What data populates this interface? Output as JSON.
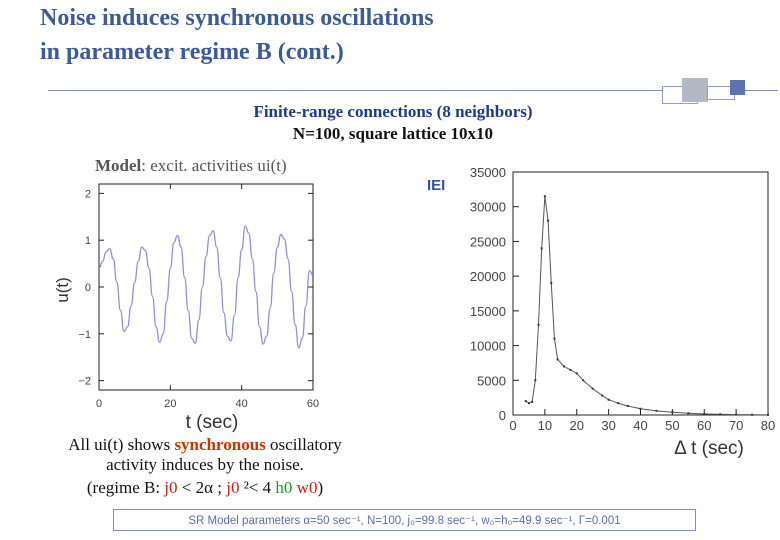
{
  "title": {
    "line1": "Noise induces synchronous oscillations",
    "line2": "in parameter regime B (cont.)"
  },
  "subtitle": {
    "line1": "Finite-range connections (8 neighbors)",
    "line2": "N=100, square lattice 10x10"
  },
  "model_label": {
    "bold": "Model",
    "rest": ": excit. activities ui(t)"
  },
  "iei_label": "IEI",
  "description": {
    "line1_a": "All ui(t) shows ",
    "line1_b": "synchronous",
    "line1_c": "  oscillatory",
    "line2": "activity induces by the noise.",
    "line3_a": "(regime B: ",
    "line3_j0a": "j0",
    "line3_b": " < 2α ;  ",
    "line3_j0b": "j0",
    "line3_c": " ²< 4 ",
    "line3_h0": "h0",
    "line3_w0": " w0",
    "line3_d": ")"
  },
  "params_text": "SR Model parameters α=50 sec⁻¹, N=100, j₀=99.8 sec⁻¹, w₀=h₀=49.9 sec⁻¹, Γ=0.001",
  "colors": {
    "title": "#3a5a9a",
    "series": "#9090d8",
    "highlight": "#cc3300",
    "accent_box": "#5b74b0"
  },
  "chart_data": [
    {
      "type": "line",
      "xlabel": "t (sec)",
      "ylabel": "u(t)",
      "xlim": [
        0,
        60
      ],
      "ylim": [
        -2.2,
        2.2
      ],
      "xticks": [
        0,
        20,
        40,
        60
      ],
      "yticks": [
        -2,
        -1,
        0,
        1,
        2
      ],
      "series": [
        {
          "x": [
            0,
            1,
            2,
            3,
            4,
            5,
            6,
            7,
            8,
            9,
            10,
            11,
            12,
            13,
            14,
            15,
            16,
            17,
            18,
            19,
            20,
            21,
            22,
            23,
            24,
            25,
            26,
            27,
            28,
            29,
            30,
            31,
            32,
            33,
            34,
            35,
            36,
            37,
            38,
            39,
            40,
            41,
            42,
            43,
            44,
            45,
            46,
            47,
            48,
            49,
            50,
            51,
            52,
            53,
            54,
            55,
            56,
            57,
            58,
            59,
            60
          ],
          "values": [
            0.4,
            0.55,
            0.75,
            0.82,
            0.6,
            0.1,
            -0.5,
            -0.95,
            -0.85,
            -0.4,
            0.1,
            0.55,
            0.85,
            0.78,
            0.4,
            -0.2,
            -0.85,
            -1.18,
            -1.0,
            -0.3,
            0.4,
            0.95,
            1.1,
            0.85,
            0.2,
            -0.5,
            -1.1,
            -1.2,
            -0.7,
            0.0,
            0.65,
            1.1,
            1.2,
            0.85,
            0.2,
            -0.55,
            -1.05,
            -1.15,
            -0.6,
            0.2,
            0.8,
            1.3,
            1.15,
            0.6,
            -0.1,
            -0.85,
            -1.22,
            -1.05,
            -0.45,
            0.3,
            0.85,
            1.12,
            1.02,
            0.6,
            -0.1,
            -0.8,
            -1.3,
            -1.1,
            -0.4,
            0.35,
            0.25
          ]
        }
      ]
    },
    {
      "type": "line",
      "title": "IEI",
      "xlabel": "Δ t (sec)",
      "ylabel": "",
      "xlim": [
        0,
        80
      ],
      "ylim": [
        0,
        35000
      ],
      "xticks": [
        0,
        10,
        20,
        30,
        40,
        50,
        60,
        70,
        80
      ],
      "yticks": [
        0,
        5000,
        10000,
        15000,
        20000,
        25000,
        30000,
        35000
      ],
      "series": [
        {
          "x": [
            4,
            5,
            6,
            7,
            8,
            9,
            10,
            11,
            12,
            13,
            14,
            16,
            18,
            20,
            22,
            25,
            28,
            30,
            33,
            36,
            40,
            45,
            50,
            55,
            60,
            65,
            70,
            75,
            80
          ],
          "values": [
            2000,
            1700,
            1900,
            5000,
            13000,
            24000,
            31500,
            28000,
            19000,
            11000,
            8000,
            7000,
            6500,
            6000,
            5000,
            3800,
            2800,
            2200,
            1700,
            1300,
            900,
            600,
            400,
            250,
            150,
            100,
            60,
            40,
            20
          ]
        }
      ]
    }
  ]
}
